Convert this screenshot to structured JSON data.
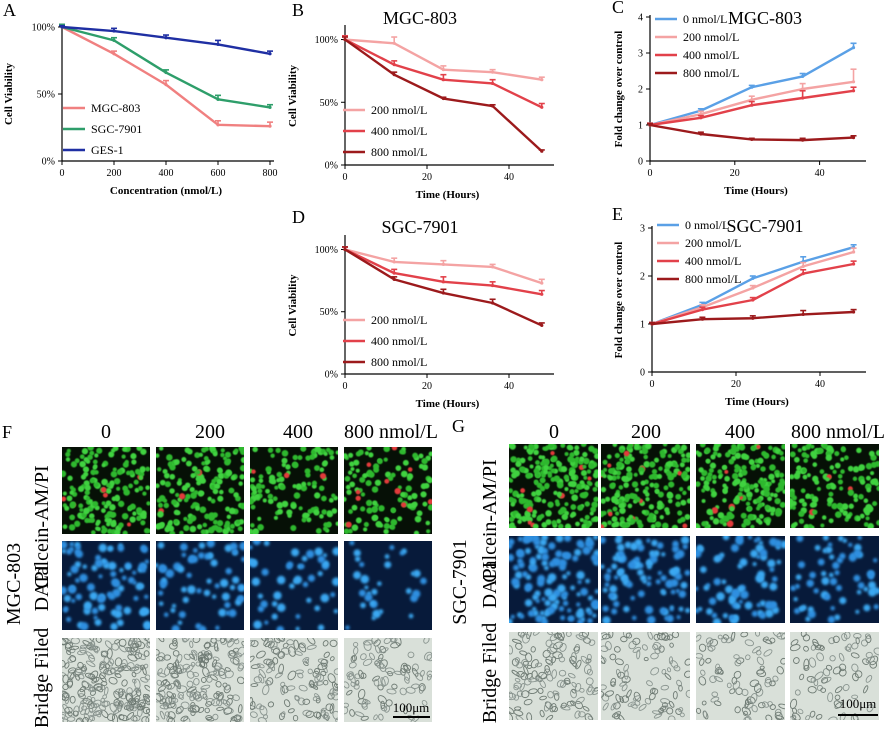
{
  "figure": {
    "panel_f": {
      "letter": "F",
      "cell_line": "MGC-803",
      "columns": [
        "0",
        "200",
        "400",
        "800 nmol/L"
      ],
      "rows": [
        "Calcein-AM/PI",
        "DAPI",
        "Bridge Filed"
      ],
      "scale_bar": "100μm"
    },
    "panel_g": {
      "letter": "G",
      "cell_line": "SGC-7901",
      "columns": [
        "0",
        "200",
        "400",
        "800 nmol/L"
      ],
      "rows": [
        "Calcein-AM/PI",
        "DAPI",
        "Bridge Filed"
      ],
      "scale_bar": "100μm"
    }
  },
  "chart_data": [
    {
      "id": "A",
      "letter": "A",
      "type": "line",
      "title": "",
      "xlabel": "Concentration (nmol/L)",
      "ylabel": "Cell Viability",
      "x": [
        0,
        200,
        400,
        600,
        800
      ],
      "x_ticks": [
        "0",
        "200",
        "400",
        "600",
        "800"
      ],
      "xlim": [
        0,
        800
      ],
      "ylim": [
        0,
        100
      ],
      "y_ticks": [
        "0%",
        "50%",
        "100%"
      ],
      "y_tick_values": [
        0,
        50,
        100
      ],
      "legend_position": "bottom-left",
      "series": [
        {
          "name": "MGC-803",
          "color": "#f08080",
          "values": [
            100,
            80,
            57,
            27,
            26
          ],
          "err": [
            2,
            2,
            3,
            3,
            3
          ]
        },
        {
          "name": "SGC-7901",
          "color": "#2e9e6a",
          "values": [
            100,
            90,
            66,
            46,
            40
          ],
          "err": [
            2,
            2,
            2,
            3,
            2
          ]
        },
        {
          "name": "GES-1",
          "color": "#1f2fa3",
          "values": [
            100,
            97,
            92,
            87,
            80
          ],
          "err": [
            1,
            2,
            2,
            3,
            2
          ]
        }
      ]
    },
    {
      "id": "B",
      "letter": "B",
      "type": "line",
      "title": "MGC-803",
      "xlabel": "Time (Hours)",
      "ylabel": "Cell Viability",
      "x": [
        0,
        12,
        24,
        36,
        48
      ],
      "x_ticks": [
        "0",
        "20",
        "40"
      ],
      "x_tick_values": [
        0,
        20,
        40
      ],
      "xlim": [
        0,
        50
      ],
      "ylim": [
        0,
        110
      ],
      "y_ticks": [
        "0%",
        "50%",
        "100%"
      ],
      "y_tick_values": [
        0,
        50,
        100
      ],
      "legend_position": "bottom-left",
      "series": [
        {
          "name": "200 nmol/L",
          "color": "#f4a3a3",
          "values": [
            100,
            97,
            76,
            74,
            68
          ],
          "err": [
            3,
            5,
            3,
            2,
            2
          ]
        },
        {
          "name": "400 nmol/L",
          "color": "#e2414a",
          "values": [
            100,
            80,
            68,
            65,
            46
          ],
          "err": [
            3,
            3,
            4,
            3,
            3
          ]
        },
        {
          "name": "800 nmol/L",
          "color": "#9c1a1c",
          "values": [
            100,
            72,
            53,
            47,
            11
          ],
          "err": [
            2,
            2,
            1,
            1,
            1
          ]
        }
      ]
    },
    {
      "id": "C",
      "letter": "C",
      "type": "line",
      "title": "MGC-803",
      "xlabel": "Time (Hours)",
      "ylabel": "Fold change over control",
      "x": [
        0,
        12,
        24,
        36,
        48
      ],
      "x_ticks": [
        "0",
        "20",
        "40"
      ],
      "x_tick_values": [
        0,
        20,
        40
      ],
      "xlim": [
        0,
        50
      ],
      "ylim": [
        0,
        4
      ],
      "y_ticks": [
        "0",
        "1",
        "2",
        "3",
        "4"
      ],
      "y_tick_values": [
        0,
        1,
        2,
        3,
        4
      ],
      "legend_position": "top-left",
      "series": [
        {
          "name": "0 nmol/L",
          "color": "#5aa0e6",
          "values": [
            1.0,
            1.4,
            2.05,
            2.35,
            3.15
          ],
          "err": [
            0.05,
            0.05,
            0.05,
            0.08,
            0.12
          ]
        },
        {
          "name": "200 nmol/L",
          "color": "#f4a3a3",
          "values": [
            1.0,
            1.3,
            1.7,
            2.0,
            2.2
          ],
          "err": [
            0.05,
            0.08,
            0.1,
            0.15,
            0.35
          ]
        },
        {
          "name": "400 nmol/L",
          "color": "#e2414a",
          "values": [
            1.0,
            1.2,
            1.55,
            1.75,
            1.95
          ],
          "err": [
            0.05,
            0.06,
            0.1,
            0.2,
            0.1
          ]
        },
        {
          "name": "800 nmol/L",
          "color": "#9c1a1c",
          "values": [
            1.0,
            0.75,
            0.6,
            0.58,
            0.65
          ],
          "err": [
            0.04,
            0.05,
            0.03,
            0.05,
            0.05
          ]
        }
      ]
    },
    {
      "id": "D",
      "letter": "D",
      "type": "line",
      "title": "SGC-7901",
      "xlabel": "Time (Hours)",
      "ylabel": "Cell Viability",
      "x": [
        0,
        12,
        24,
        36,
        48
      ],
      "x_ticks": [
        "0",
        "20",
        "40"
      ],
      "x_tick_values": [
        0,
        20,
        40
      ],
      "xlim": [
        0,
        50
      ],
      "ylim": [
        0,
        110
      ],
      "y_ticks": [
        "0%",
        "50%",
        "100%"
      ],
      "y_tick_values": [
        0,
        50,
        100
      ],
      "legend_position": "bottom-left",
      "series": [
        {
          "name": "200 nmol/L",
          "color": "#f4a3a3",
          "values": [
            100,
            90,
            88,
            86,
            73
          ],
          "err": [
            2,
            3,
            3,
            2,
            3
          ]
        },
        {
          "name": "400 nmol/L",
          "color": "#e2414a",
          "values": [
            100,
            81,
            74,
            71,
            64
          ],
          "err": [
            2,
            3,
            4,
            3,
            3
          ]
        },
        {
          "name": "800 nmol/L",
          "color": "#9c1a1c",
          "values": [
            100,
            76,
            65,
            57,
            39
          ],
          "err": [
            2,
            2,
            3,
            3,
            2
          ]
        }
      ]
    },
    {
      "id": "E",
      "letter": "E",
      "type": "line",
      "title": "SGC-7901",
      "xlabel": "Time (Hours)",
      "ylabel": "Fold change over control",
      "x": [
        0,
        12,
        24,
        36,
        48
      ],
      "x_ticks": [
        "0",
        "20",
        "40"
      ],
      "x_tick_values": [
        0,
        20,
        40
      ],
      "xlim": [
        0,
        50
      ],
      "ylim": [
        0,
        3
      ],
      "y_ticks": [
        "0",
        "1",
        "2",
        "3"
      ],
      "y_tick_values": [
        0,
        1,
        2,
        3
      ],
      "legend_position": "top-left",
      "series": [
        {
          "name": "0 nmol/L",
          "color": "#5aa0e6",
          "values": [
            1.0,
            1.4,
            1.95,
            2.3,
            2.6
          ],
          "err": [
            0.03,
            0.05,
            0.05,
            0.1,
            0.05
          ]
        },
        {
          "name": "200 nmol/L",
          "color": "#f4a3a3",
          "values": [
            1.0,
            1.35,
            1.75,
            2.2,
            2.5
          ],
          "err": [
            0.03,
            0.05,
            0.05,
            0.08,
            0.08
          ]
        },
        {
          "name": "400 nmol/L",
          "color": "#e2414a",
          "values": [
            1.0,
            1.3,
            1.5,
            2.05,
            2.25
          ],
          "err": [
            0.03,
            0.05,
            0.05,
            0.08,
            0.06
          ]
        },
        {
          "name": "800 nmol/L",
          "color": "#9c1a1c",
          "values": [
            1.0,
            1.1,
            1.12,
            1.2,
            1.25
          ],
          "err": [
            0.03,
            0.04,
            0.05,
            0.08,
            0.05
          ]
        }
      ]
    }
  ]
}
